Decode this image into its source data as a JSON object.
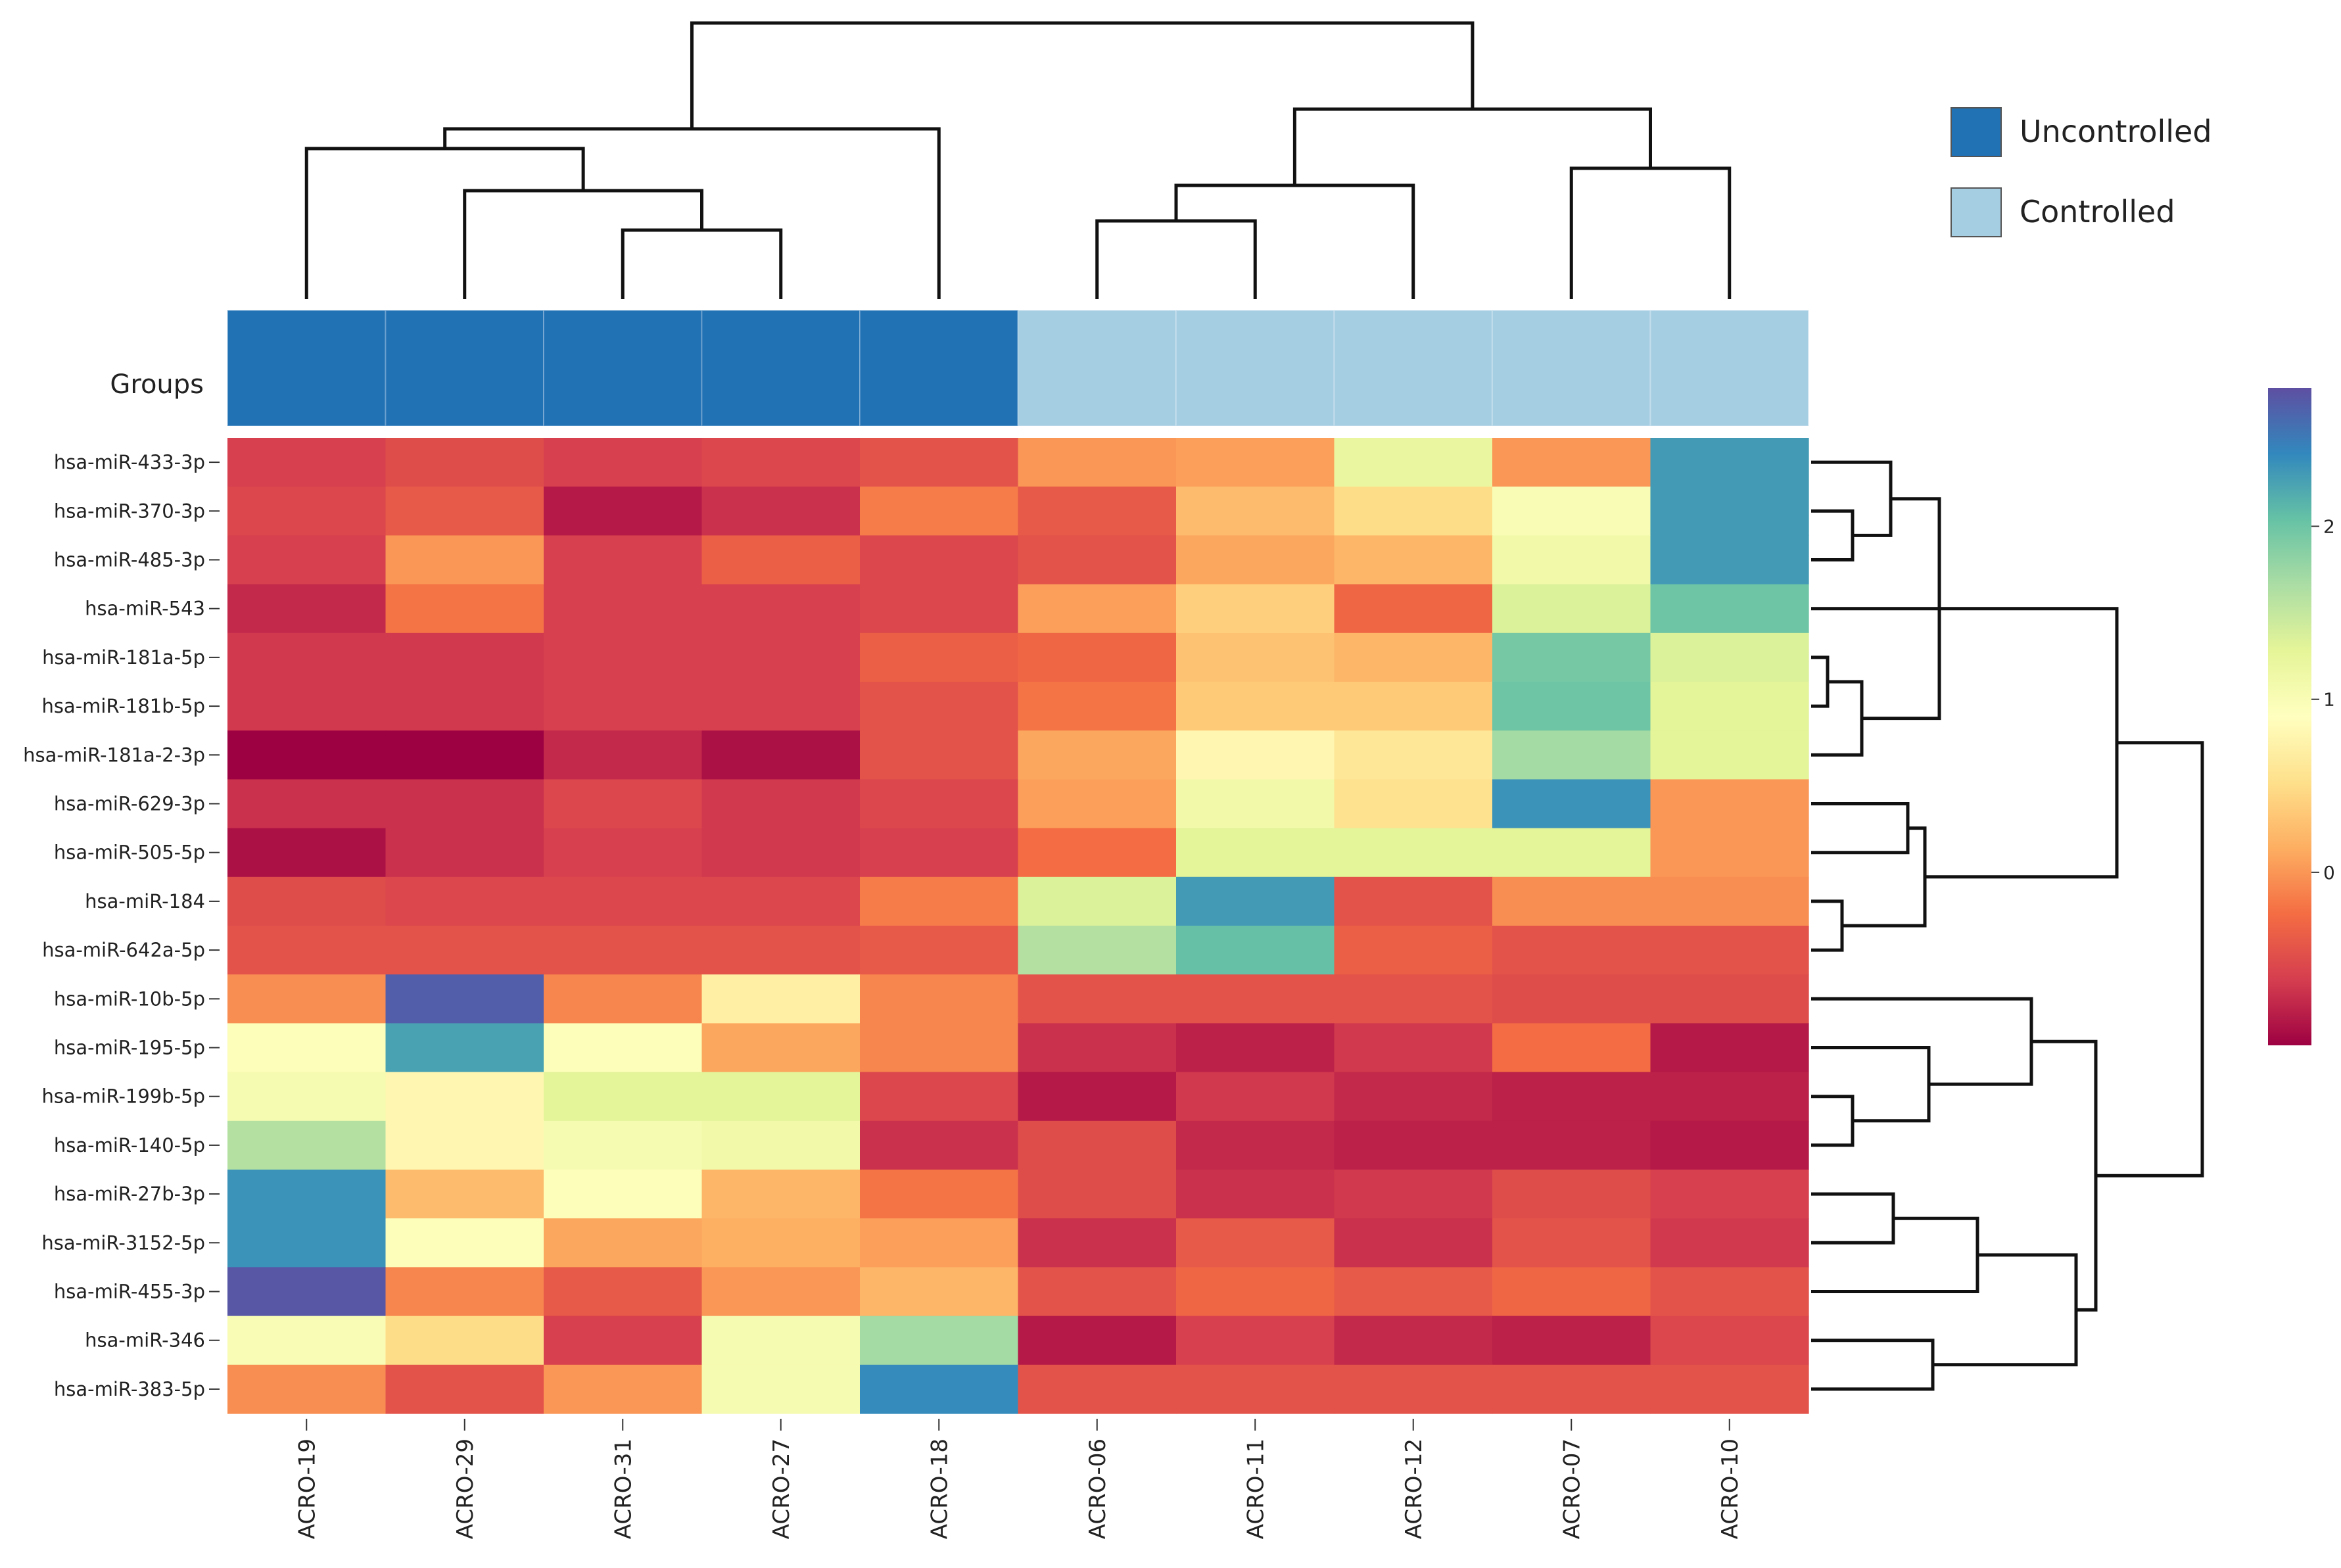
{
  "chart_data": {
    "type": "heatmap",
    "title": "",
    "row_annotation_label": "Groups",
    "columns": [
      "ACRO-19",
      "ACRO-29",
      "ACRO-31",
      "ACRO-27",
      "ACRO-18",
      "ACRO-06",
      "ACRO-11",
      "ACRO-12",
      "ACRO-07",
      "ACRO-10"
    ],
    "column_groups": [
      "Uncontrolled",
      "Uncontrolled",
      "Uncontrolled",
      "Uncontrolled",
      "Uncontrolled",
      "Controlled",
      "Controlled",
      "Controlled",
      "Controlled",
      "Controlled"
    ],
    "rows": [
      "hsa-miR-433-3p",
      "hsa-miR-370-3p",
      "hsa-miR-485-3p",
      "hsa-miR-543",
      "hsa-miR-181a-5p",
      "hsa-miR-181b-5p",
      "hsa-miR-181a-2-3p",
      "hsa-miR-629-3p",
      "hsa-miR-505-5p",
      "hsa-miR-184",
      "hsa-miR-642a-5p",
      "hsa-miR-10b-5p",
      "hsa-miR-195-5p",
      "hsa-miR-199b-5p",
      "hsa-miR-140-5p",
      "hsa-miR-27b-3p",
      "hsa-miR-3152-5p",
      "hsa-miR-455-3p",
      "hsa-miR-346",
      "hsa-miR-383-5p"
    ],
    "values": [
      [
        -0.6,
        -0.5,
        -0.6,
        -0.55,
        -0.45,
        0.0,
        0.05,
        1.2,
        0.0,
        2.3
      ],
      [
        -0.55,
        -0.4,
        -0.85,
        -0.7,
        -0.15,
        -0.4,
        0.25,
        0.5,
        1.0,
        2.3
      ],
      [
        -0.6,
        0.0,
        -0.6,
        -0.35,
        -0.55,
        -0.45,
        0.1,
        0.2,
        1.1,
        2.3
      ],
      [
        -0.75,
        -0.2,
        -0.6,
        -0.6,
        -0.55,
        0.05,
        0.4,
        -0.3,
        1.35,
        2.0
      ],
      [
        -0.65,
        -0.65,
        -0.6,
        -0.6,
        -0.35,
        -0.3,
        0.3,
        0.2,
        1.95,
        1.35
      ],
      [
        -0.65,
        -0.65,
        -0.6,
        -0.6,
        -0.45,
        -0.2,
        0.35,
        0.35,
        2.0,
        1.3
      ],
      [
        -1.0,
        -1.0,
        -0.75,
        -0.9,
        -0.45,
        0.1,
        0.8,
        0.6,
        1.7,
        1.3
      ],
      [
        -0.7,
        -0.7,
        -0.55,
        -0.65,
        -0.55,
        0.05,
        1.1,
        0.55,
        2.35,
        0.0
      ],
      [
        -0.9,
        -0.7,
        -0.6,
        -0.65,
        -0.6,
        -0.25,
        1.3,
        1.3,
        1.3,
        0.0
      ],
      [
        -0.5,
        -0.55,
        -0.55,
        -0.55,
        -0.15,
        1.35,
        2.3,
        -0.45,
        -0.05,
        -0.05
      ],
      [
        -0.45,
        -0.45,
        -0.45,
        -0.45,
        -0.4,
        1.6,
        2.05,
        -0.35,
        -0.45,
        -0.45
      ],
      [
        -0.05,
        2.7,
        -0.1,
        0.7,
        -0.1,
        -0.45,
        -0.45,
        -0.45,
        -0.5,
        -0.5
      ],
      [
        0.95,
        2.25,
        0.95,
        0.1,
        -0.1,
        -0.7,
        -0.8,
        -0.65,
        -0.25,
        -0.85
      ],
      [
        1.05,
        0.8,
        1.3,
        1.3,
        -0.55,
        -0.85,
        -0.65,
        -0.75,
        -0.8,
        -0.8
      ],
      [
        1.6,
        0.8,
        1.05,
        1.1,
        -0.7,
        -0.5,
        -0.75,
        -0.8,
        -0.8,
        -0.85
      ],
      [
        2.35,
        0.25,
        0.95,
        0.2,
        -0.2,
        -0.5,
        -0.7,
        -0.65,
        -0.5,
        -0.6
      ],
      [
        2.35,
        0.95,
        0.1,
        0.15,
        0.05,
        -0.7,
        -0.4,
        -0.7,
        -0.45,
        -0.65
      ],
      [
        2.75,
        -0.1,
        -0.4,
        0.0,
        0.2,
        -0.45,
        -0.3,
        -0.4,
        -0.3,
        -0.45
      ],
      [
        1.0,
        0.5,
        -0.6,
        1.05,
        1.7,
        -0.85,
        -0.6,
        -0.75,
        -0.8,
        -0.55
      ],
      [
        -0.05,
        -0.45,
        0.0,
        1.05,
        2.4,
        -0.45,
        -0.45,
        -0.45,
        -0.45,
        -0.45
      ]
    ],
    "color_scale": {
      "colormap": "Spectral (reversed)",
      "min": -1,
      "max": 2.8,
      "tick_labels": [
        "2",
        "1",
        "0"
      ],
      "tick_values": [
        2,
        1,
        0
      ],
      "stops": [
        "#9e0142",
        "#d53e4f",
        "#f46d43",
        "#fdae61",
        "#fee08b",
        "#ffffbf",
        "#e6f598",
        "#abdda4",
        "#66c2a5",
        "#3288bd",
        "#5e4fa2"
      ]
    },
    "legend": {
      "position": "top-right",
      "entries": [
        {
          "label": "Uncontrolled",
          "color": "#2171b5"
        },
        {
          "label": "Controlled",
          "color": "#a6cee3"
        }
      ]
    },
    "column_dendrogram": [
      [
        3,
        2
      ],
      [
        1,
        "n0"
      ],
      [
        0,
        "n1"
      ],
      [
        4,
        "n2"
      ],
      [
        5,
        6
      ],
      [
        "n4",
        7
      ],
      [
        8,
        9
      ],
      [
        "n5",
        "n6"
      ],
      [
        "n3",
        "n7"
      ]
    ],
    "row_dendrogram": [
      [
        1,
        2
      ],
      [
        0,
        "n0"
      ],
      [
        4,
        5
      ],
      [
        "n2",
        6
      ],
      [
        "n1",
        "n3"
      ],
      [
        3,
        "n4"
      ],
      [
        7,
        8
      ],
      [
        9,
        10
      ],
      [
        "n6",
        "n7"
      ],
      [
        "n5",
        "n8"
      ],
      [
        13,
        14
      ],
      [
        12,
        "n10"
      ],
      [
        11,
        "n11"
      ],
      [
        15,
        16
      ],
      [
        "n13",
        17
      ],
      [
        18,
        19
      ],
      [
        "n14",
        "n15"
      ],
      [
        "n12",
        "n16"
      ],
      [
        "n9",
        "n17"
      ]
    ]
  }
}
